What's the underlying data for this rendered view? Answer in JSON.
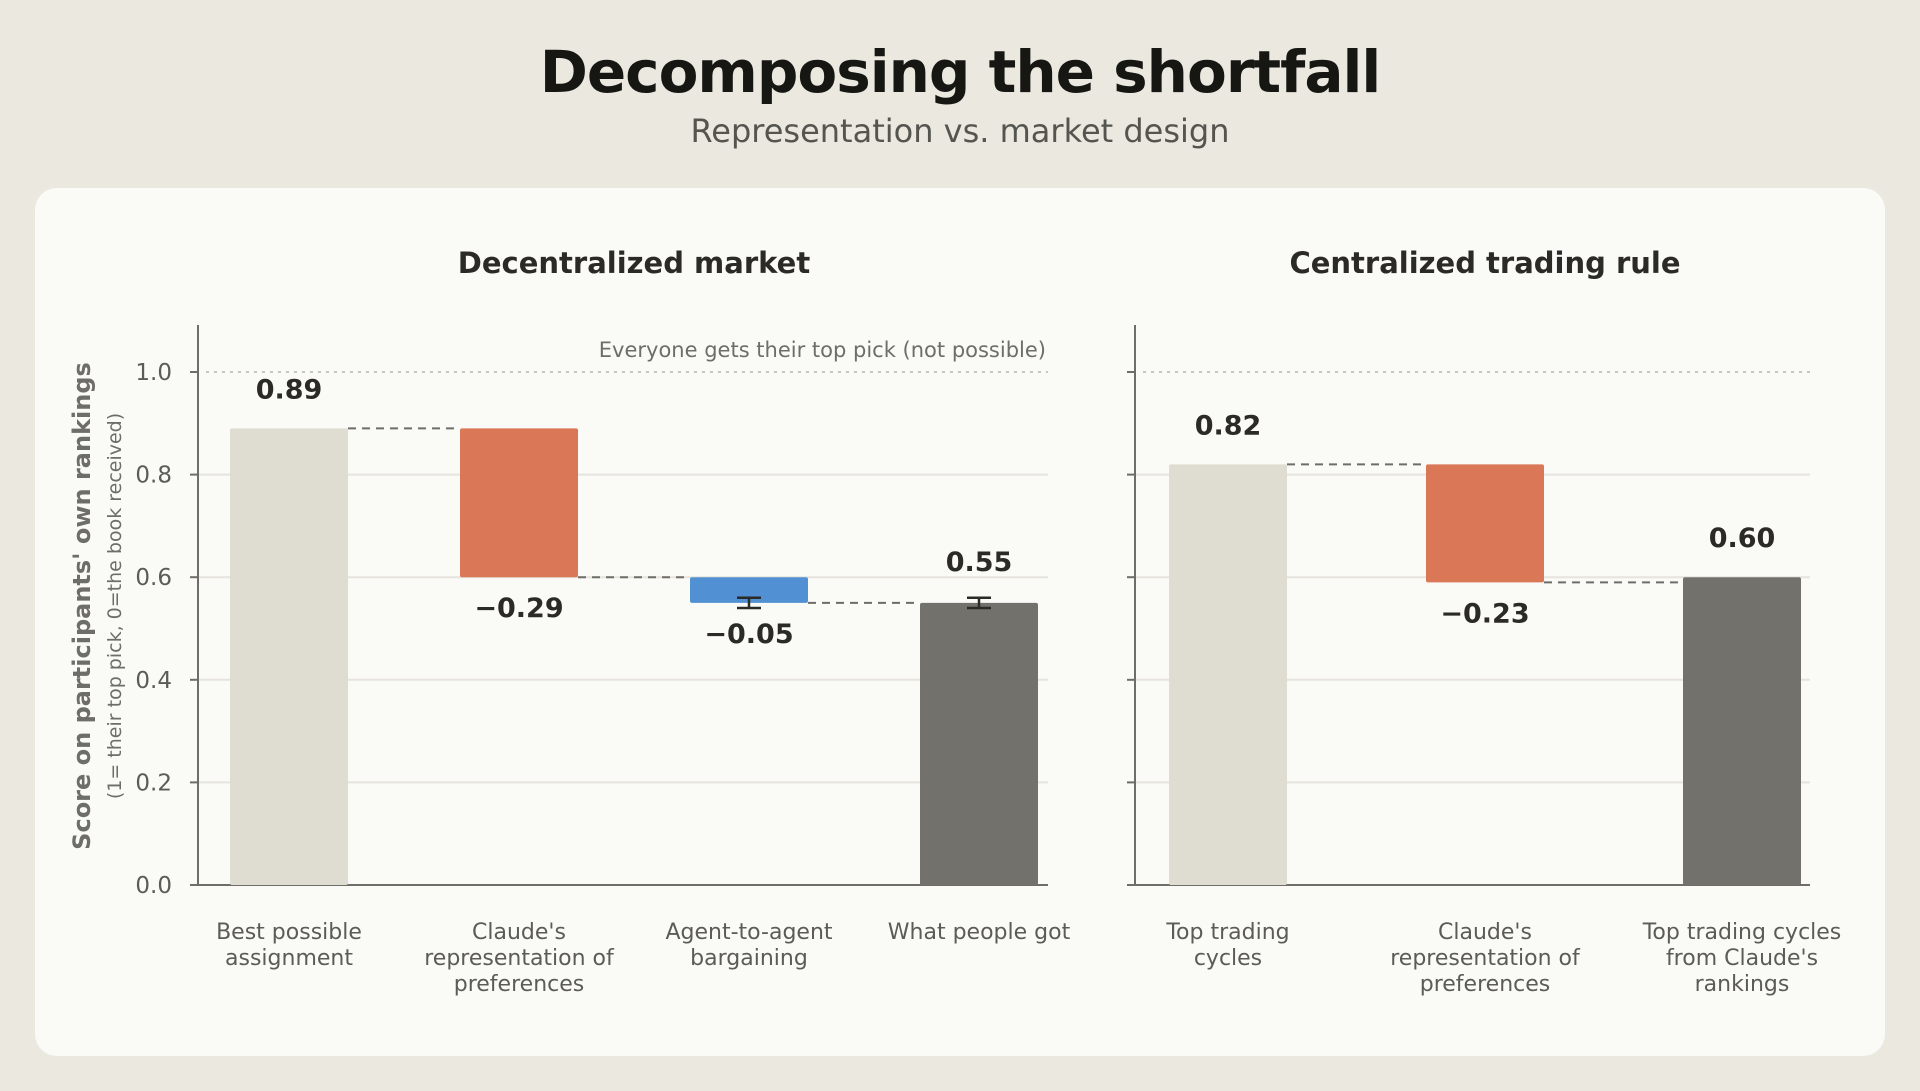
{
  "header": {
    "title": "Decomposing the shortfall",
    "subtitle": "Representation vs. market design"
  },
  "y_axis": {
    "label": "Score on participants' own rankings",
    "sublabel": "(1= their top pick, 0=the book received)",
    "ticks": [
      "0.0",
      "0.2",
      "0.4",
      "0.6",
      "0.8",
      "1.0"
    ]
  },
  "colors": {
    "start_bar": "#dfddd1",
    "representation": "#d97757",
    "bargaining": "#5190d2",
    "end_bar": "#72716c",
    "gridline": "#e6e4dc",
    "axis": "#6e6d68",
    "connector": "#6e6d68"
  },
  "chart_data": [
    {
      "type": "bar",
      "subtype": "waterfall",
      "title": "Decentralized market",
      "ylim": [
        0,
        1.1
      ],
      "yticks": [
        0,
        0.2,
        0.4,
        0.6,
        0.8,
        1.0
      ],
      "reference_line": {
        "y": 1.0,
        "label": "Everyone gets their top pick (not possible)"
      },
      "categories": [
        [
          "Best possible",
          "assignment"
        ],
        [
          "Claude's",
          "representation of",
          "preferences"
        ],
        [
          "Agent-to-agent",
          "bargaining"
        ],
        [
          "What people got"
        ]
      ],
      "steps": [
        {
          "kind": "total",
          "value": 0.89,
          "label": "0.89",
          "color_key": "start_bar"
        },
        {
          "kind": "delta",
          "value": -0.29,
          "label": "−0.29",
          "color_key": "representation"
        },
        {
          "kind": "delta",
          "value": -0.05,
          "label": "−0.05",
          "color_key": "bargaining",
          "error": 0.01
        },
        {
          "kind": "total",
          "value": 0.55,
          "label": "0.55",
          "color_key": "end_bar",
          "error": 0.01
        }
      ]
    },
    {
      "type": "bar",
      "subtype": "waterfall",
      "title": "Centralized trading rule",
      "ylim": [
        0,
        1.1
      ],
      "yticks": [
        0,
        0.2,
        0.4,
        0.6,
        0.8,
        1.0
      ],
      "reference_line": {
        "y": 1.0,
        "label": ""
      },
      "categories": [
        [
          "Top trading",
          "cycles"
        ],
        [
          "Claude's",
          "representation of",
          "preferences"
        ],
        [
          "Top trading cycles",
          "from Claude's",
          "rankings"
        ]
      ],
      "steps": [
        {
          "kind": "total",
          "value": 0.82,
          "label": "0.82",
          "color_key": "start_bar"
        },
        {
          "kind": "delta",
          "value": -0.23,
          "label": "−0.23",
          "color_key": "representation"
        },
        {
          "kind": "total",
          "value": 0.6,
          "label": "0.60",
          "color_key": "end_bar"
        }
      ]
    }
  ]
}
